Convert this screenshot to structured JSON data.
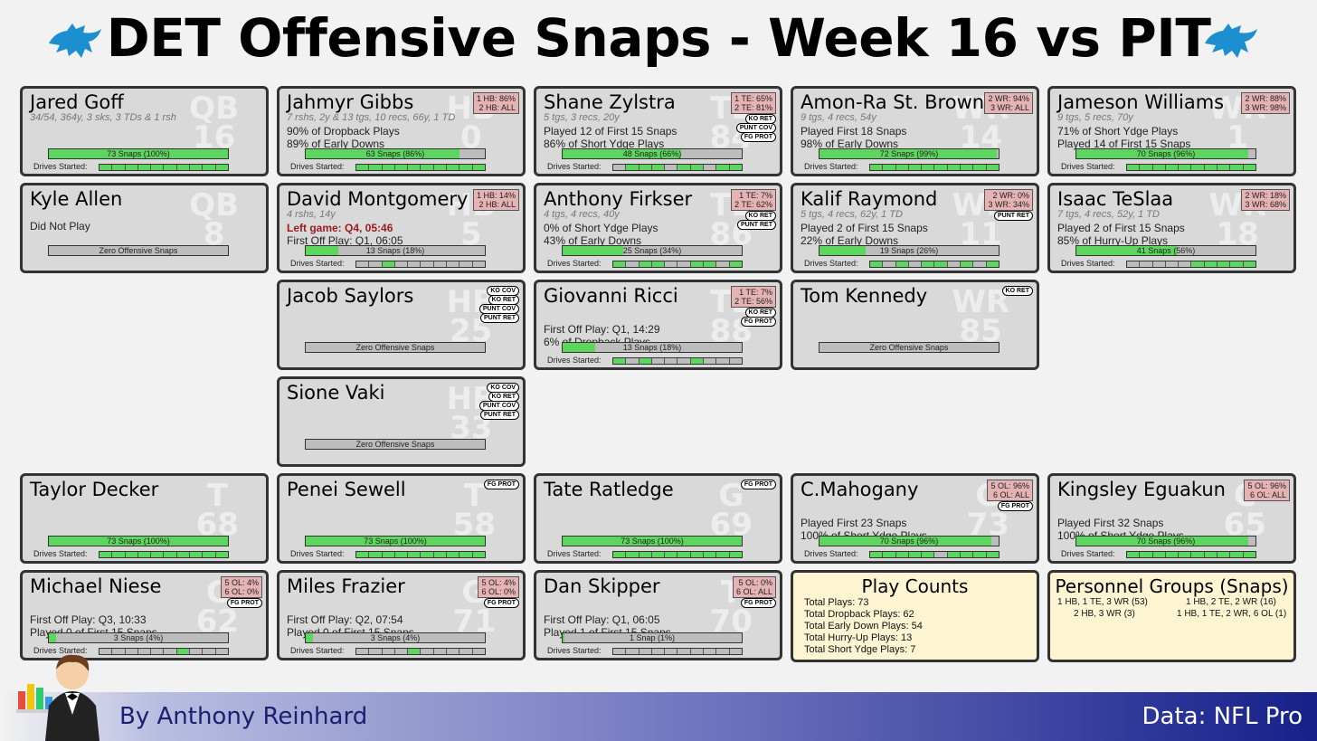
{
  "title": "DET Offensive Snaps - Week 16 vs PIT",
  "footer": {
    "byline": "By Anthony Reinhard",
    "source": "Data: NFL Pro"
  },
  "colors": {
    "snap_bar": "#5cd65c",
    "card_bg": "#d9d9d9",
    "position_box": "#e5b3b3",
    "summary_bg": "#fdf4d2",
    "footer_dark": "#15208a"
  },
  "labels": {
    "drives": "Drives Started:"
  },
  "players": [
    {
      "name": "Jared Goff",
      "pos": "QB",
      "num": "16",
      "col": 0,
      "row": 0,
      "sub": "34/54, 364y, 3 sks, 3 TDs & 1 rsh",
      "lines": [],
      "snaps_label": "73 Snaps (100%)",
      "pct": 1.0,
      "drives": [
        1,
        1,
        1,
        1,
        1,
        1,
        1,
        1,
        1,
        1
      ],
      "pbox": [],
      "tags": []
    },
    {
      "name": "Jahmyr Gibbs",
      "pos": "HB",
      "num": "0",
      "col": 1,
      "row": 0,
      "sub": "7 rshs, 2y & 13 tgs, 10 recs, 66y, 1 TD",
      "lines": [
        "90% of Dropback Plays",
        "89% of Early Downs"
      ],
      "snaps_label": "63 Snaps (86%)",
      "pct": 0.86,
      "drives": [
        1,
        1,
        1,
        1,
        1,
        1,
        1,
        1,
        1,
        1
      ],
      "pbox": [
        "1 HB: 86%",
        "2 HB: ALL"
      ],
      "tags": []
    },
    {
      "name": "Shane Zylstra",
      "pos": "TE",
      "num": "84",
      "col": 2,
      "row": 0,
      "sub": "5 tgs, 3 recs, 20y",
      "lines": [
        "Played 12 of First 15 Snaps",
        "86% of Short Ydge Plays"
      ],
      "snaps_label": "48 Snaps (66%)",
      "pct": 0.66,
      "drives": [
        0,
        1,
        1,
        1,
        0,
        1,
        1,
        0,
        1,
        1
      ],
      "pbox": [
        "1 TE: 65%",
        "2 TE: 81%"
      ],
      "tags": [
        "KO RET",
        "PUNT COV",
        "FG PROT"
      ]
    },
    {
      "name": "Amon-Ra St. Brown",
      "pos": "WR",
      "num": "14",
      "col": 3,
      "row": 0,
      "sub": "9 tgs, 4 recs, 54y",
      "lines": [
        "Played First 18 Snaps",
        "98% of Early Downs"
      ],
      "snaps_label": "72 Snaps (99%)",
      "pct": 0.99,
      "drives": [
        1,
        1,
        1,
        1,
        1,
        1,
        1,
        1,
        1,
        1
      ],
      "pbox": [
        "2 WR: 94%",
        "3 WR: ALL"
      ],
      "tags": []
    },
    {
      "name": "Jameson Williams",
      "pos": "WR",
      "num": "1",
      "col": 4,
      "row": 0,
      "sub": "9 tgs, 5 recs, 70y",
      "lines": [
        "71% of Short Ydge Plays",
        "Played 14 of First 15 Snaps"
      ],
      "snaps_label": "70 Snaps (96%)",
      "pct": 0.96,
      "drives": [
        1,
        1,
        1,
        1,
        1,
        1,
        1,
        1,
        1,
        1
      ],
      "pbox": [
        "2 WR: 88%",
        "3 WR: 98%"
      ],
      "tags": []
    },
    {
      "name": "Kyle Allen",
      "pos": "QB",
      "num": "8",
      "col": 0,
      "row": 1,
      "sub": "",
      "lines": [
        "Did Not Play"
      ],
      "snaps_label": "Zero Offensive Snaps",
      "pct": 0,
      "drives": [],
      "pbox": [],
      "tags": []
    },
    {
      "name": "David Montgomery",
      "pos": "HB",
      "num": "5",
      "col": 1,
      "row": 1,
      "sub": "4 rshs, 14y",
      "red": "Left game: Q4, 05:46",
      "lines": [
        "First Off Play: Q1, 06:05"
      ],
      "snaps_label": "13 Snaps (18%)",
      "pct": 0.18,
      "drives": [
        0,
        0,
        1,
        0,
        0,
        0,
        0,
        0,
        0,
        0
      ],
      "pbox": [
        "1 HB: 14%",
        "2 HB: ALL"
      ],
      "tags": []
    },
    {
      "name": "Anthony Firkser",
      "pos": "TE",
      "num": "86",
      "col": 2,
      "row": 1,
      "sub": "4 tgs, 4 recs, 40y",
      "lines": [
        "0% of Short Ydge Plays",
        "43% of Early Downs"
      ],
      "snaps_label": "25 Snaps (34%)",
      "pct": 0.34,
      "drives": [
        1,
        0,
        1,
        1,
        0,
        0,
        1,
        1,
        0,
        1
      ],
      "pbox": [
        "1 TE: 7%",
        "2 TE: 62%"
      ],
      "tags": [
        "KO RET",
        "PUNT RET"
      ]
    },
    {
      "name": "Kalif Raymond",
      "pos": "WR",
      "num": "11",
      "col": 3,
      "row": 1,
      "sub": "5 tgs, 4 recs, 62y, 1 TD",
      "lines": [
        "Played 2 of First 15 Snaps",
        "22% of Early Downs"
      ],
      "snaps_label": "19 Snaps (26%)",
      "pct": 0.26,
      "drives": [
        1,
        0,
        1,
        0,
        1,
        1,
        0,
        1,
        0,
        1
      ],
      "pbox": [
        "2 WR: 0%",
        "3 WR: 34%"
      ],
      "tags": [
        "PUNT RET"
      ]
    },
    {
      "name": "Isaac TeSlaa",
      "pos": "WR",
      "num": "18",
      "col": 4,
      "row": 1,
      "sub": "7 tgs, 4 recs, 52y, 1 TD",
      "lines": [
        "Played 2 of First 15 Snaps",
        "85% of Hurry-Up Plays"
      ],
      "snaps_label": "41 Snaps (56%)",
      "pct": 0.56,
      "drives": [
        0,
        0,
        0,
        0,
        0,
        1,
        1,
        1,
        1,
        1
      ],
      "pbox": [
        "2 WR: 18%",
        "3 WR: 68%"
      ],
      "tags": []
    },
    {
      "name": "Jacob Saylors",
      "pos": "HB",
      "num": "25",
      "col": 1,
      "row": 2,
      "sub": "",
      "lines": [],
      "snaps_label": "Zero Offensive Snaps",
      "pct": 0,
      "drives": [],
      "pbox": [],
      "tags": [
        "KO COV",
        "KO RET",
        "PUNT COV",
        "PUNT RET"
      ]
    },
    {
      "name": "Giovanni Ricci",
      "pos": "TE",
      "num": "88",
      "col": 2,
      "row": 2,
      "sub": "",
      "lines": [
        "First Off Play: Q1, 14:29",
        "6% of Dropback Plays"
      ],
      "snaps_label": "13 Snaps (18%)",
      "pct": 0.18,
      "drives": [
        1,
        0,
        1,
        0,
        0,
        0,
        1,
        0,
        0,
        0
      ],
      "pbox": [
        "1 TE: 7%",
        "2 TE: 56%"
      ],
      "tags": [
        "KO RET",
        "FG PROT"
      ]
    },
    {
      "name": "Tom Kennedy",
      "pos": "WR",
      "num": "85",
      "col": 3,
      "row": 2,
      "sub": "",
      "lines": [],
      "snaps_label": "Zero Offensive Snaps",
      "pct": 0,
      "drives": [],
      "pbox": [],
      "tags": [
        "KO RET"
      ]
    },
    {
      "name": "Sione Vaki",
      "pos": "HB",
      "num": "33",
      "col": 1,
      "row": 3,
      "sub": "",
      "lines": [],
      "snaps_label": "Zero Offensive Snaps",
      "pct": 0,
      "drives": [],
      "pbox": [],
      "tags": [
        "KO COV",
        "KO RET",
        "PUNT COV",
        "PUNT RET"
      ]
    },
    {
      "name": "Taylor Decker",
      "pos": "T",
      "num": "68",
      "col": 0,
      "row": 4,
      "sub": "",
      "lines": [],
      "snaps_label": "73 Snaps (100%)",
      "pct": 1.0,
      "drives": [
        1,
        1,
        1,
        1,
        1,
        1,
        1,
        1,
        1,
        1
      ],
      "pbox": [],
      "tags": []
    },
    {
      "name": "Penei Sewell",
      "pos": "T",
      "num": "58",
      "col": 1,
      "row": 4,
      "sub": "",
      "lines": [],
      "snaps_label": "73 Snaps (100%)",
      "pct": 1.0,
      "drives": [
        1,
        1,
        1,
        1,
        1,
        1,
        1,
        1,
        1,
        1
      ],
      "pbox": [],
      "tags": [
        "FG PROT"
      ]
    },
    {
      "name": "Tate Ratledge",
      "pos": "G",
      "num": "69",
      "col": 2,
      "row": 4,
      "sub": "",
      "lines": [],
      "snaps_label": "73 Snaps (100%)",
      "pct": 1.0,
      "drives": [
        1,
        1,
        1,
        1,
        1,
        1,
        1,
        1,
        1,
        1
      ],
      "pbox": [],
      "tags": [
        "FG PROT"
      ]
    },
    {
      "name": "C.Mahogany",
      "pos": "G",
      "num": "73",
      "col": 3,
      "row": 4,
      "sub": "",
      "lines": [
        "Played First 23 Snaps",
        "100% of Short Ydge Plays"
      ],
      "snaps_label": "70 Snaps (96%)",
      "pct": 0.96,
      "drives": [
        1,
        1,
        1,
        1,
        1,
        0,
        1,
        1,
        1,
        1
      ],
      "pbox": [
        "5 OL: 96%",
        "6 OL: ALL"
      ],
      "tags": [
        "FG PROT"
      ]
    },
    {
      "name": "Kingsley Eguakun",
      "pos": "C",
      "num": "65",
      "col": 4,
      "row": 4,
      "sub": "",
      "lines": [
        "Played First 32 Snaps",
        "100% of Short Ydge Plays"
      ],
      "snaps_label": "70 Snaps (96%)",
      "pct": 0.96,
      "drives": [
        1,
        1,
        1,
        1,
        1,
        1,
        1,
        1,
        1,
        1
      ],
      "pbox": [
        "5 OL: 96%",
        "6 OL: ALL"
      ],
      "tags": []
    },
    {
      "name": "Michael Niese",
      "pos": "C",
      "num": "62",
      "col": 0,
      "row": 5,
      "sub": "",
      "lines": [
        "First Off Play: Q3, 10:33",
        "Played 0 of First 15 Snaps"
      ],
      "snaps_label": "3 Snaps (4%)",
      "pct": 0.04,
      "drives": [
        0,
        0,
        0,
        0,
        0,
        0,
        1,
        0,
        0,
        0
      ],
      "pbox": [
        "5 OL: 4%",
        "6 OL: 0%"
      ],
      "tags": [
        "FG PROT"
      ]
    },
    {
      "name": "Miles Frazier",
      "pos": "G",
      "num": "71",
      "col": 1,
      "row": 5,
      "sub": "",
      "lines": [
        "First Off Play: Q2, 07:54",
        "Played 0 of First 15 Snaps"
      ],
      "snaps_label": "3 Snaps (4%)",
      "pct": 0.04,
      "drives": [
        0,
        0,
        0,
        0,
        1,
        0,
        0,
        0,
        0,
        0
      ],
      "pbox": [
        "5 OL: 4%",
        "6 OL: 0%"
      ],
      "tags": [
        "FG PROT"
      ]
    },
    {
      "name": "Dan Skipper",
      "pos": "T",
      "num": "70",
      "col": 2,
      "row": 5,
      "sub": "",
      "lines": [
        "First Off Play: Q1, 06:05",
        "Played 1 of First 15 Snaps"
      ],
      "snaps_label": "1 Snap (1%)",
      "pct": 0.01,
      "drives": [
        0,
        0,
        0,
        0,
        0,
        0,
        0,
        0,
        0,
        0
      ],
      "pbox": [
        "5 OL: 0%",
        "6 OL: ALL"
      ],
      "tags": [
        "FG PROT"
      ]
    }
  ],
  "play_counts": {
    "title": "Play Counts",
    "lines": [
      "Total Plays: 73",
      "Total Dropback Plays: 62",
      "Total Early Down Plays: 54",
      "Total Hurry-Up Plays: 13",
      "Total Short Ydge Plays: 7"
    ]
  },
  "personnel": {
    "title": "Personnel Groups (Snaps)",
    "groups": [
      "1 HB, 1 TE, 3 WR (53)",
      "1 HB, 2 TE, 2 WR (16)",
      "2 HB, 3 WR (3)",
      "1 HB, 1 TE, 2 WR, 6 OL (1)"
    ]
  }
}
